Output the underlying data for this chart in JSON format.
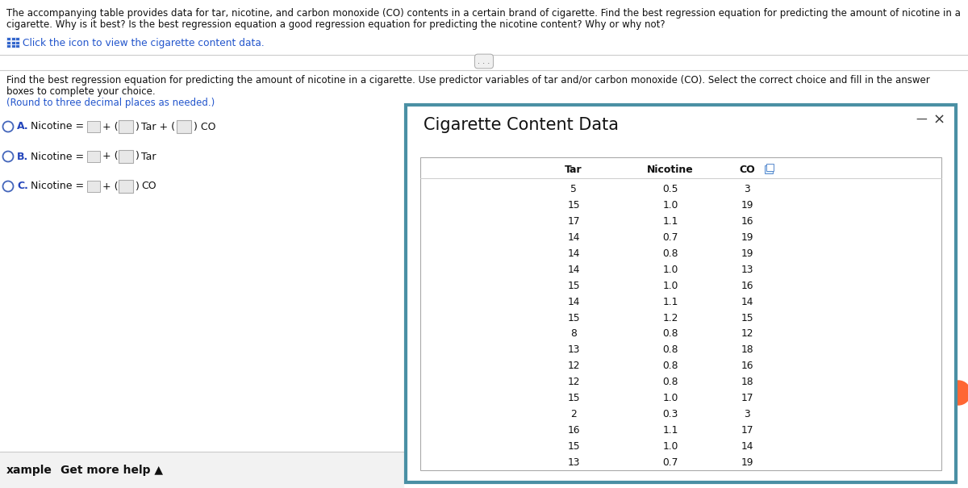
{
  "header_line1": "The accompanying table provides data for tar, nicotine, and carbon monoxide (CO) contents in a certain brand of cigarette. Find the best regression equation for predicting the amount of nicotine in a",
  "header_line2": "cigarette. Why is it best? Is the best regression equation a good regression equation for predicting the nicotine content? Why or why not?",
  "icon_text": "Click the icon to view the cigarette content data.",
  "main_q_line1": "Find the best regression equation for predicting the amount of nicotine in a cigarette. Use predictor variables of tar and/or carbon monoxide (CO). Select the correct choice and fill in the answer",
  "main_q_line2": "boxes to complete your choice.",
  "round_note": "(Round to three decimal places as needed.)",
  "popup_title": "Cigarette Content Data",
  "table_headers": [
    "Tar",
    "Nicotine",
    "CO"
  ],
  "table_data": [
    [
      5,
      0.5,
      3
    ],
    [
      15,
      1.0,
      19
    ],
    [
      17,
      1.1,
      16
    ],
    [
      14,
      0.7,
      19
    ],
    [
      14,
      0.8,
      19
    ],
    [
      14,
      1.0,
      13
    ],
    [
      15,
      1.0,
      16
    ],
    [
      14,
      1.1,
      14
    ],
    [
      15,
      1.2,
      15
    ],
    [
      8,
      0.8,
      12
    ],
    [
      13,
      0.8,
      18
    ],
    [
      12,
      0.8,
      16
    ],
    [
      12,
      0.8,
      18
    ],
    [
      15,
      1.0,
      17
    ],
    [
      2,
      0.3,
      3
    ],
    [
      16,
      1.1,
      17
    ],
    [
      15,
      1.0,
      14
    ],
    [
      13,
      0.7,
      19
    ]
  ],
  "footer_text": "Get more help ▲",
  "bg_color": "#ffffff",
  "popup_bg": "#ffffff",
  "popup_border": "#4a90a4",
  "table_border": "#cccccc",
  "blue_text": "#2255cc",
  "icon_color": "#3366cc",
  "radio_color": "#4466bb",
  "label_blue": "#2244bb",
  "footer_bg": "#f2f2f2",
  "sep_color": "#cccccc",
  "dots_bg": "#f0f0f0",
  "dots_border": "#aaaaaa",
  "orange_circle": "#ff6633"
}
